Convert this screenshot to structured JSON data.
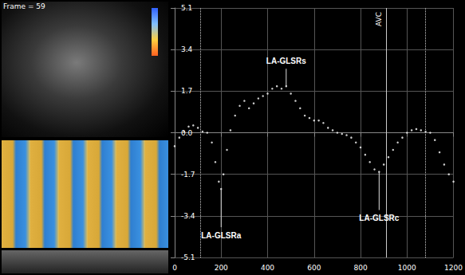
{
  "screen": {
    "frame_label": "Frame = 59"
  },
  "chart_data": {
    "type": "scatter",
    "marker": "circle",
    "color": "#ffffff",
    "x": [
      0,
      20,
      40,
      60,
      80,
      100,
      120,
      140,
      160,
      175,
      190,
      200,
      210,
      225,
      240,
      260,
      280,
      300,
      320,
      340,
      360,
      380,
      400,
      420,
      440,
      460,
      480,
      500,
      520,
      540,
      560,
      580,
      600,
      620,
      640,
      660,
      680,
      700,
      720,
      740,
      760,
      780,
      800,
      820,
      840,
      860,
      880,
      900,
      920,
      940,
      960,
      980,
      1000,
      1020,
      1040,
      1060,
      1080,
      1100,
      1120,
      1140,
      1160,
      1180,
      1200
    ],
    "values": [
      -0.55,
      -0.2,
      0.05,
      0.25,
      0.3,
      0.2,
      0.05,
      0.0,
      -0.4,
      -1.2,
      -2.0,
      -2.3,
      -1.7,
      -0.7,
      0.1,
      0.7,
      1.1,
      1.3,
      1.0,
      1.2,
      1.4,
      1.5,
      1.6,
      1.8,
      1.9,
      1.8,
      1.9,
      1.6,
      1.3,
      1.0,
      0.7,
      0.6,
      0.5,
      0.5,
      0.4,
      0.2,
      0.1,
      0.0,
      -0.05,
      -0.1,
      -0.2,
      -0.4,
      -0.6,
      -0.9,
      -1.2,
      -1.5,
      -1.6,
      -1.3,
      -1.0,
      -0.7,
      -0.4,
      -0.2,
      0.0,
      0.1,
      0.15,
      0.1,
      0.05,
      0.0,
      -0.3,
      -0.8,
      -1.3,
      -1.7,
      -2.0
    ],
    "xlim": [
      0,
      1200
    ],
    "xticks": [
      0,
      200,
      400,
      600,
      800,
      1000,
      1200
    ],
    "ylim": [
      -5.1,
      5.1
    ],
    "yticks": [
      -5.1,
      -3.4,
      -1.7,
      {
        "value": 0,
        "label": "0.0"
      },
      1.7,
      3.4,
      5.1
    ],
    "grid": true,
    "annotations": [
      {
        "text": "LA-GLSRs",
        "x": 480,
        "y": 1.9
      },
      {
        "text": "LA-GLSRa",
        "x": 200,
        "y": -2.3
      },
      {
        "text": "LA-GLSRc",
        "x": 880,
        "y": -1.6
      }
    ],
    "vertical_lines": [
      {
        "x": 110,
        "line_style": "dotted"
      },
      {
        "x": 910,
        "label": "AVC",
        "line_style": "solid"
      },
      {
        "x": 1080,
        "line_style": "dotted"
      }
    ]
  }
}
